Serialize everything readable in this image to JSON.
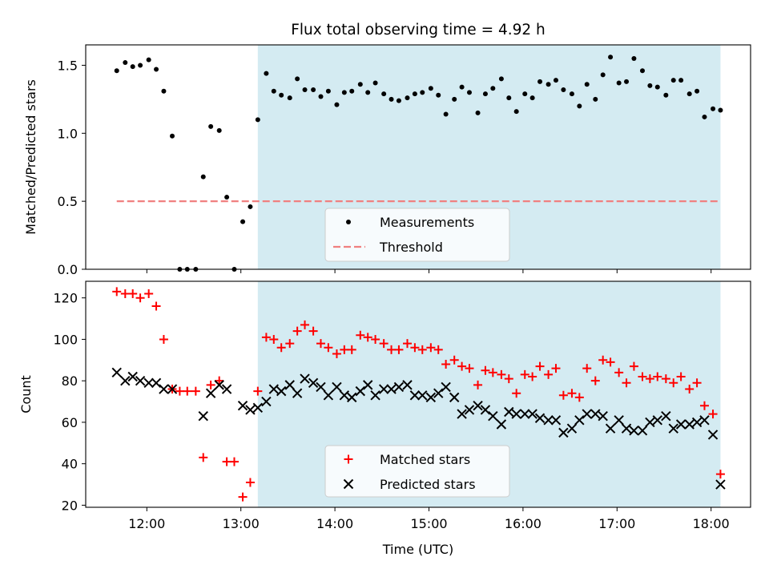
{
  "figure": {
    "title": "Flux total observing time = 4.92 h"
  },
  "chart_data": [
    {
      "id": "top",
      "type": "scatter",
      "title": "Flux total observing time = 4.92 h",
      "xlabel": "",
      "ylabel": "Matched/Predicted stars",
      "xlim": [
        11.35,
        18.42
      ],
      "ylim": [
        0,
        1.65
      ],
      "yticks": [
        0.0,
        0.5,
        1.0,
        1.5
      ],
      "ytick_labels": [
        "0.0",
        "0.5",
        "1.0",
        "1.5"
      ],
      "xticks": [
        12,
        13,
        14,
        15,
        16,
        17,
        18
      ],
      "xtick_labels": [
        "",
        "",
        "",
        "",
        "",
        "",
        ""
      ],
      "shaded_region": {
        "x0": 13.18,
        "x1": 18.1,
        "color": "#add8e6"
      },
      "legend": {
        "position": "bottom-center",
        "entries": [
          "Measurements",
          "Threshold"
        ]
      },
      "series": [
        {
          "name": "Measurements",
          "kind": "points",
          "color": "#000000",
          "x": [
            11.68,
            11.77,
            11.85,
            11.93,
            12.02,
            12.1,
            12.18,
            12.27,
            12.35,
            12.43,
            12.52,
            12.6,
            12.68,
            12.77,
            12.85,
            12.93,
            13.02,
            13.1,
            13.18,
            13.27,
            13.35,
            13.43,
            13.52,
            13.6,
            13.68,
            13.77,
            13.85,
            13.93,
            14.02,
            14.1,
            14.18,
            14.27,
            14.35,
            14.43,
            14.52,
            14.6,
            14.68,
            14.77,
            14.85,
            14.93,
            15.02,
            15.1,
            15.18,
            15.27,
            15.35,
            15.43,
            15.52,
            15.6,
            15.68,
            15.77,
            15.85,
            15.93,
            16.02,
            16.1,
            16.18,
            16.27,
            16.35,
            16.43,
            16.52,
            16.6,
            16.68,
            16.77,
            16.85,
            16.93,
            17.02,
            17.1,
            17.18,
            17.27,
            17.35,
            17.43,
            17.52,
            17.6,
            17.68,
            17.77,
            17.85,
            17.93,
            18.02,
            18.1
          ],
          "y": [
            1.46,
            1.52,
            1.49,
            1.5,
            1.54,
            1.47,
            1.31,
            0.98,
            0.0,
            0.0,
            0.0,
            0.68,
            1.05,
            1.02,
            0.53,
            0.0,
            0.35,
            0.46,
            1.1,
            1.44,
            1.31,
            1.28,
            1.26,
            1.4,
            1.32,
            1.32,
            1.27,
            1.31,
            1.21,
            1.3,
            1.31,
            1.36,
            1.3,
            1.37,
            1.29,
            1.25,
            1.24,
            1.26,
            1.29,
            1.3,
            1.33,
            1.28,
            1.14,
            1.25,
            1.34,
            1.3,
            1.15,
            1.29,
            1.33,
            1.4,
            1.26,
            1.16,
            1.29,
            1.26,
            1.38,
            1.36,
            1.39,
            1.32,
            1.29,
            1.2,
            1.36,
            1.25,
            1.43,
            1.56,
            1.37,
            1.38,
            1.55,
            1.46,
            1.35,
            1.34,
            1.28,
            1.39,
            1.39,
            1.29,
            1.31,
            1.12,
            1.18,
            1.17
          ]
        },
        {
          "name": "Threshold",
          "kind": "dashed-line",
          "color": "#f08080",
          "x": [
            11.68,
            18.1
          ],
          "y": [
            0.5,
            0.5
          ]
        }
      ]
    },
    {
      "id": "bottom",
      "type": "scatter",
      "title": "",
      "xlabel": "Time (UTC)",
      "ylabel": "Count",
      "xlim": [
        11.35,
        18.42
      ],
      "ylim": [
        19,
        128
      ],
      "yticks": [
        20,
        40,
        60,
        80,
        100,
        120
      ],
      "ytick_labels": [
        "20",
        "40",
        "60",
        "80",
        "100",
        "120"
      ],
      "xticks": [
        12,
        13,
        14,
        15,
        16,
        17,
        18
      ],
      "xtick_labels": [
        "12:00",
        "13:00",
        "14:00",
        "15:00",
        "16:00",
        "17:00",
        "18:00"
      ],
      "shaded_region": {
        "x0": 13.18,
        "x1": 18.1,
        "color": "#add8e6"
      },
      "legend": {
        "position": "bottom-center",
        "entries": [
          "Matched stars",
          "Predicted stars"
        ]
      },
      "series": [
        {
          "name": "Matched stars",
          "kind": "plus",
          "color": "#ff0000",
          "x": [
            11.68,
            11.77,
            11.85,
            11.93,
            12.02,
            12.1,
            12.18,
            12.27,
            12.35,
            12.43,
            12.52,
            12.6,
            12.68,
            12.77,
            12.85,
            12.93,
            13.02,
            13.1,
            13.18,
            13.27,
            13.35,
            13.43,
            13.52,
            13.6,
            13.68,
            13.77,
            13.85,
            13.93,
            14.02,
            14.1,
            14.18,
            14.27,
            14.35,
            14.43,
            14.52,
            14.6,
            14.68,
            14.77,
            14.85,
            14.93,
            15.02,
            15.1,
            15.18,
            15.27,
            15.35,
            15.43,
            15.52,
            15.6,
            15.68,
            15.77,
            15.85,
            15.93,
            16.02,
            16.1,
            16.18,
            16.27,
            16.35,
            16.43,
            16.52,
            16.6,
            16.68,
            16.77,
            16.85,
            16.93,
            17.02,
            17.1,
            17.18,
            17.27,
            17.35,
            17.43,
            17.52,
            17.6,
            17.68,
            17.77,
            17.85,
            17.93,
            18.02,
            18.1
          ],
          "y": [
            123,
            122,
            122,
            120,
            122,
            116,
            100,
            76,
            75,
            75,
            75,
            43,
            78,
            80,
            41,
            41,
            24,
            31,
            75,
            101,
            100,
            96,
            98,
            104,
            107,
            104,
            98,
            96,
            93,
            95,
            95,
            102,
            101,
            100,
            98,
            95,
            95,
            98,
            96,
            95,
            96,
            95,
            88,
            90,
            87,
            86,
            78,
            85,
            84,
            83,
            81,
            74,
            83,
            82,
            87,
            83,
            86,
            73,
            74,
            72,
            86,
            80,
            90,
            89,
            84,
            79,
            87,
            82,
            81,
            82,
            81,
            79,
            82,
            76,
            79,
            68,
            64,
            35
          ]
        },
        {
          "name": "Predicted stars",
          "kind": "cross",
          "color": "#000000",
          "x": [
            11.68,
            11.77,
            11.85,
            11.93,
            12.02,
            12.1,
            12.18,
            12.27,
            12.35,
            12.43,
            12.52,
            12.6,
            12.68,
            12.77,
            12.85,
            12.93,
            13.02,
            13.1,
            13.18,
            13.27,
            13.35,
            13.43,
            13.52,
            13.6,
            13.68,
            13.77,
            13.85,
            13.93,
            14.02,
            14.1,
            14.18,
            14.27,
            14.35,
            14.43,
            14.52,
            14.6,
            14.68,
            14.77,
            14.85,
            14.93,
            15.02,
            15.1,
            15.18,
            15.27,
            15.35,
            15.43,
            15.52,
            15.6,
            15.68,
            15.77,
            15.85,
            15.93,
            16.02,
            16.1,
            16.18,
            16.27,
            16.35,
            16.43,
            16.52,
            16.6,
            16.68,
            16.77,
            16.85,
            16.93,
            17.02,
            17.1,
            17.18,
            17.27,
            17.35,
            17.43,
            17.52,
            17.6,
            17.68,
            17.77,
            17.85,
            17.93,
            18.02,
            18.1
          ],
          "y": [
            84,
            80,
            82,
            80,
            79,
            79,
            76,
            76,
            null,
            null,
            null,
            63,
            74,
            78,
            76,
            null,
            68,
            66,
            67,
            70,
            76,
            75,
            78,
            74,
            81,
            79,
            77,
            73,
            77,
            73,
            72,
            75,
            78,
            73,
            76,
            76,
            77,
            78,
            73,
            73,
            72,
            74,
            77,
            72,
            64,
            66,
            68,
            66,
            63,
            59,
            65,
            64,
            64,
            64,
            62,
            61,
            61,
            55,
            57,
            61,
            64,
            64,
            63,
            57,
            61,
            57,
            56,
            56,
            60,
            61,
            63,
            57,
            59,
            59,
            60,
            61,
            54,
            30
          ]
        }
      ]
    }
  ]
}
